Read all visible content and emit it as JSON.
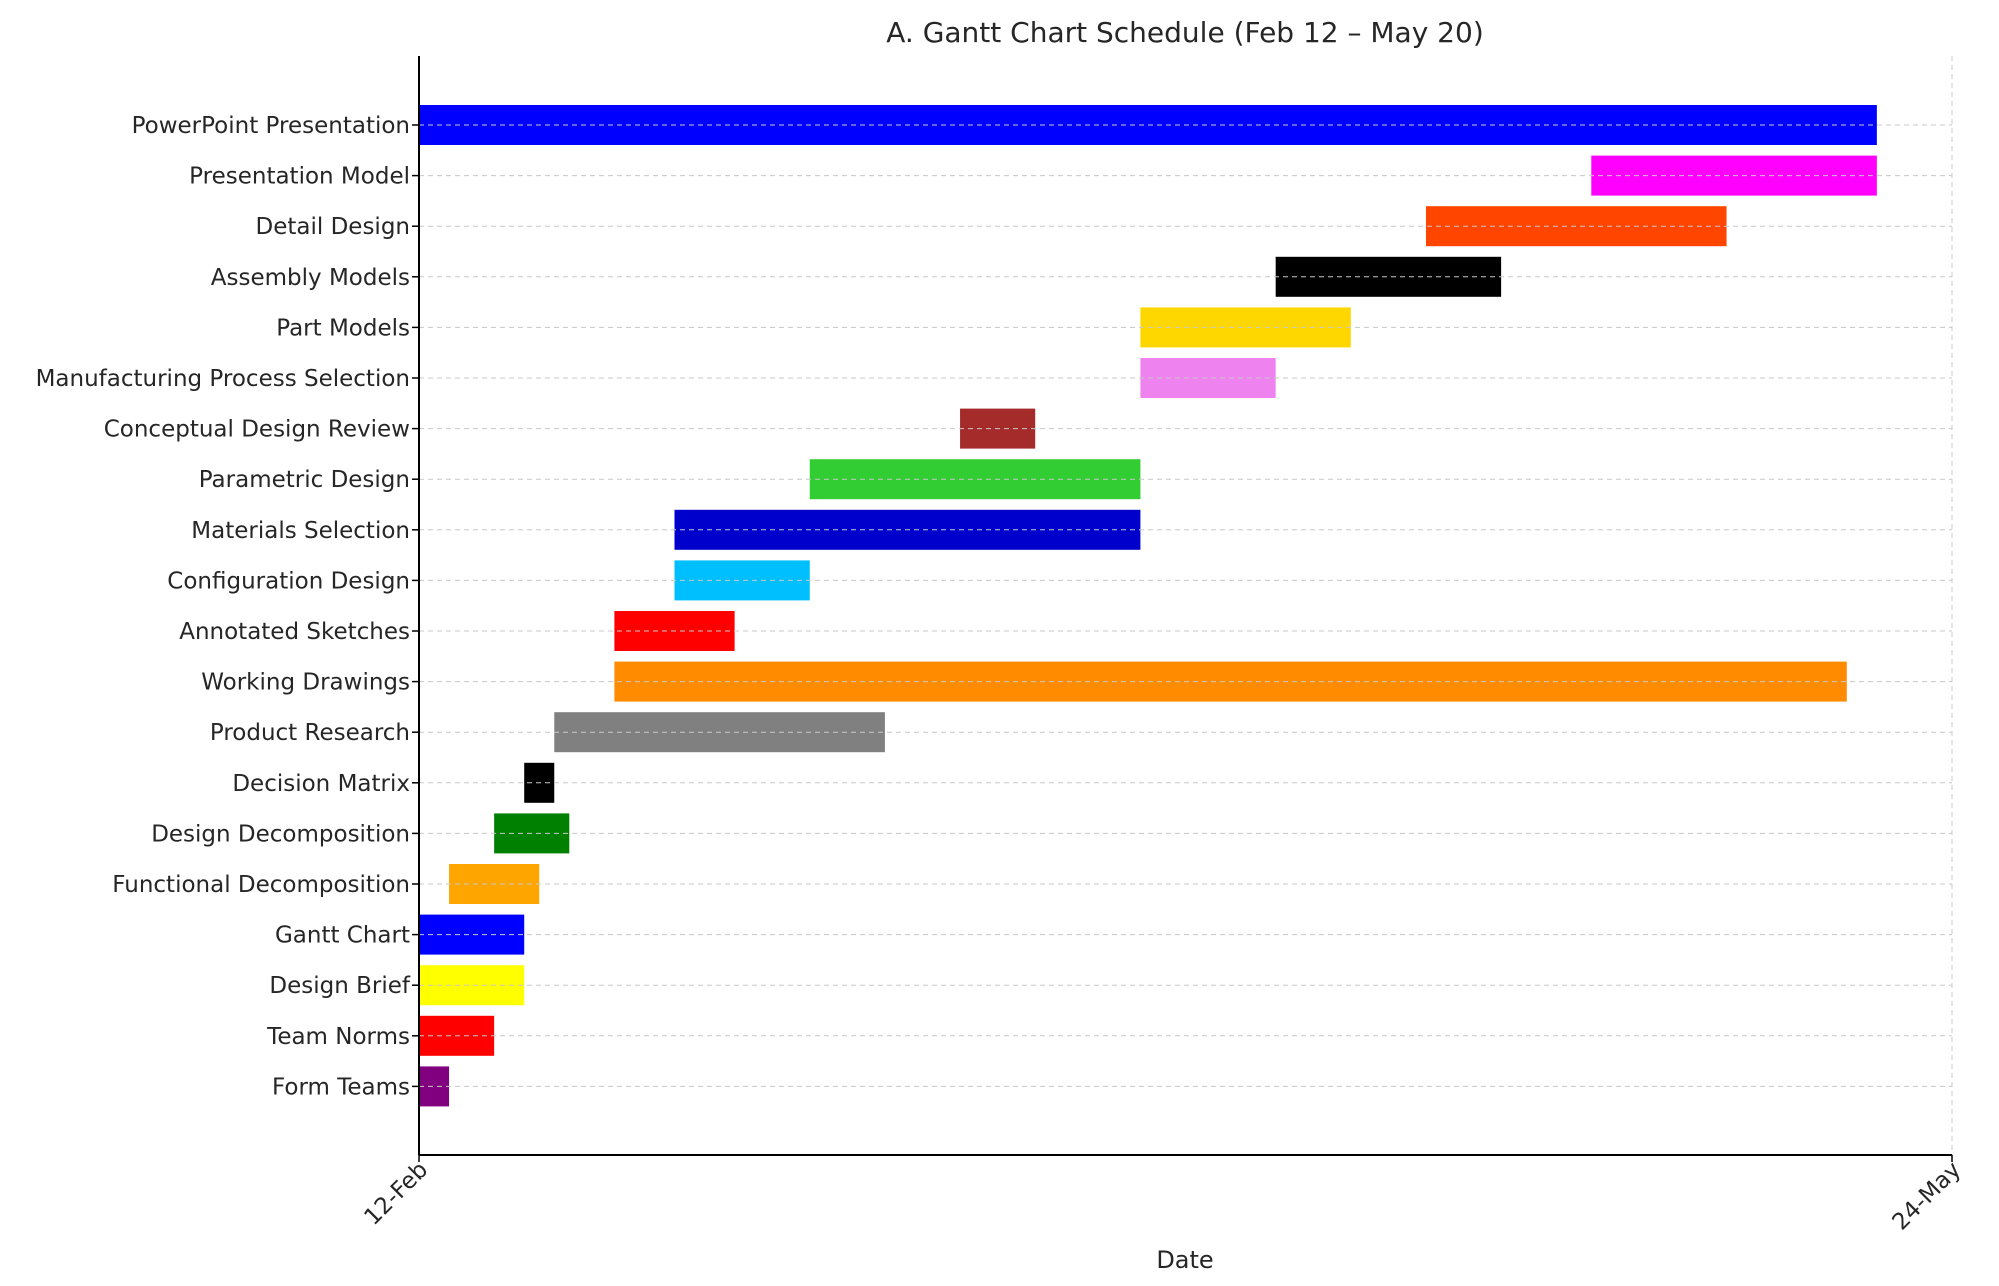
{
  "chart_data": {
    "type": "gantt",
    "title": "A. Gantt Chart Schedule (Feb 12 – May 20)",
    "xlabel": "Date",
    "ylabel": "",
    "x_unit": "days since Feb 12",
    "xlim": [
      0,
      102
    ],
    "x_ticks": [
      {
        "label": "12-Feb",
        "value": 0
      },
      {
        "label": "24-May",
        "value": 102
      }
    ],
    "grid": true,
    "tasks": [
      {
        "name": "PowerPoint Presentation",
        "start": 0,
        "end": 97,
        "color": "#0000ff"
      },
      {
        "name": "Presentation Model",
        "start": 78,
        "end": 97,
        "color": "#ff00ff"
      },
      {
        "name": "Detail Design",
        "start": 67,
        "end": 87,
        "color": "#ff4500"
      },
      {
        "name": "Assembly Models",
        "start": 57,
        "end": 72,
        "color": "#000000"
      },
      {
        "name": "Part Models",
        "start": 48,
        "end": 62,
        "color": "#ffd700"
      },
      {
        "name": "Manufacturing Process Selection",
        "start": 48,
        "end": 57,
        "color": "#ee82ee"
      },
      {
        "name": "Conceptual Design Review",
        "start": 36,
        "end": 41,
        "color": "#a52a2a"
      },
      {
        "name": "Parametric Design",
        "start": 26,
        "end": 48,
        "color": "#32cd32"
      },
      {
        "name": "Materials Selection",
        "start": 17,
        "end": 48,
        "color": "#0000cd"
      },
      {
        "name": "Configuration Design",
        "start": 17,
        "end": 26,
        "color": "#00bfff"
      },
      {
        "name": "Annotated Sketches",
        "start": 13,
        "end": 21,
        "color": "#ff0000"
      },
      {
        "name": "Working Drawings",
        "start": 13,
        "end": 95,
        "color": "#ff8c00"
      },
      {
        "name": "Product Research",
        "start": 9,
        "end": 31,
        "color": "#808080"
      },
      {
        "name": "Decision Matrix",
        "start": 7,
        "end": 9,
        "color": "#000000"
      },
      {
        "name": "Design Decomposition",
        "start": 5,
        "end": 10,
        "color": "#008000"
      },
      {
        "name": "Functional Decomposition",
        "start": 2,
        "end": 8,
        "color": "#ffa500"
      },
      {
        "name": "Gantt Chart",
        "start": 0,
        "end": 7,
        "color": "#0000ff"
      },
      {
        "name": "Design Brief",
        "start": 0,
        "end": 7,
        "color": "#ffff00"
      },
      {
        "name": "Team Norms",
        "start": 0,
        "end": 5,
        "color": "#ff0000"
      },
      {
        "name": "Form Teams",
        "start": 0,
        "end": 2,
        "color": "#800080"
      }
    ]
  }
}
